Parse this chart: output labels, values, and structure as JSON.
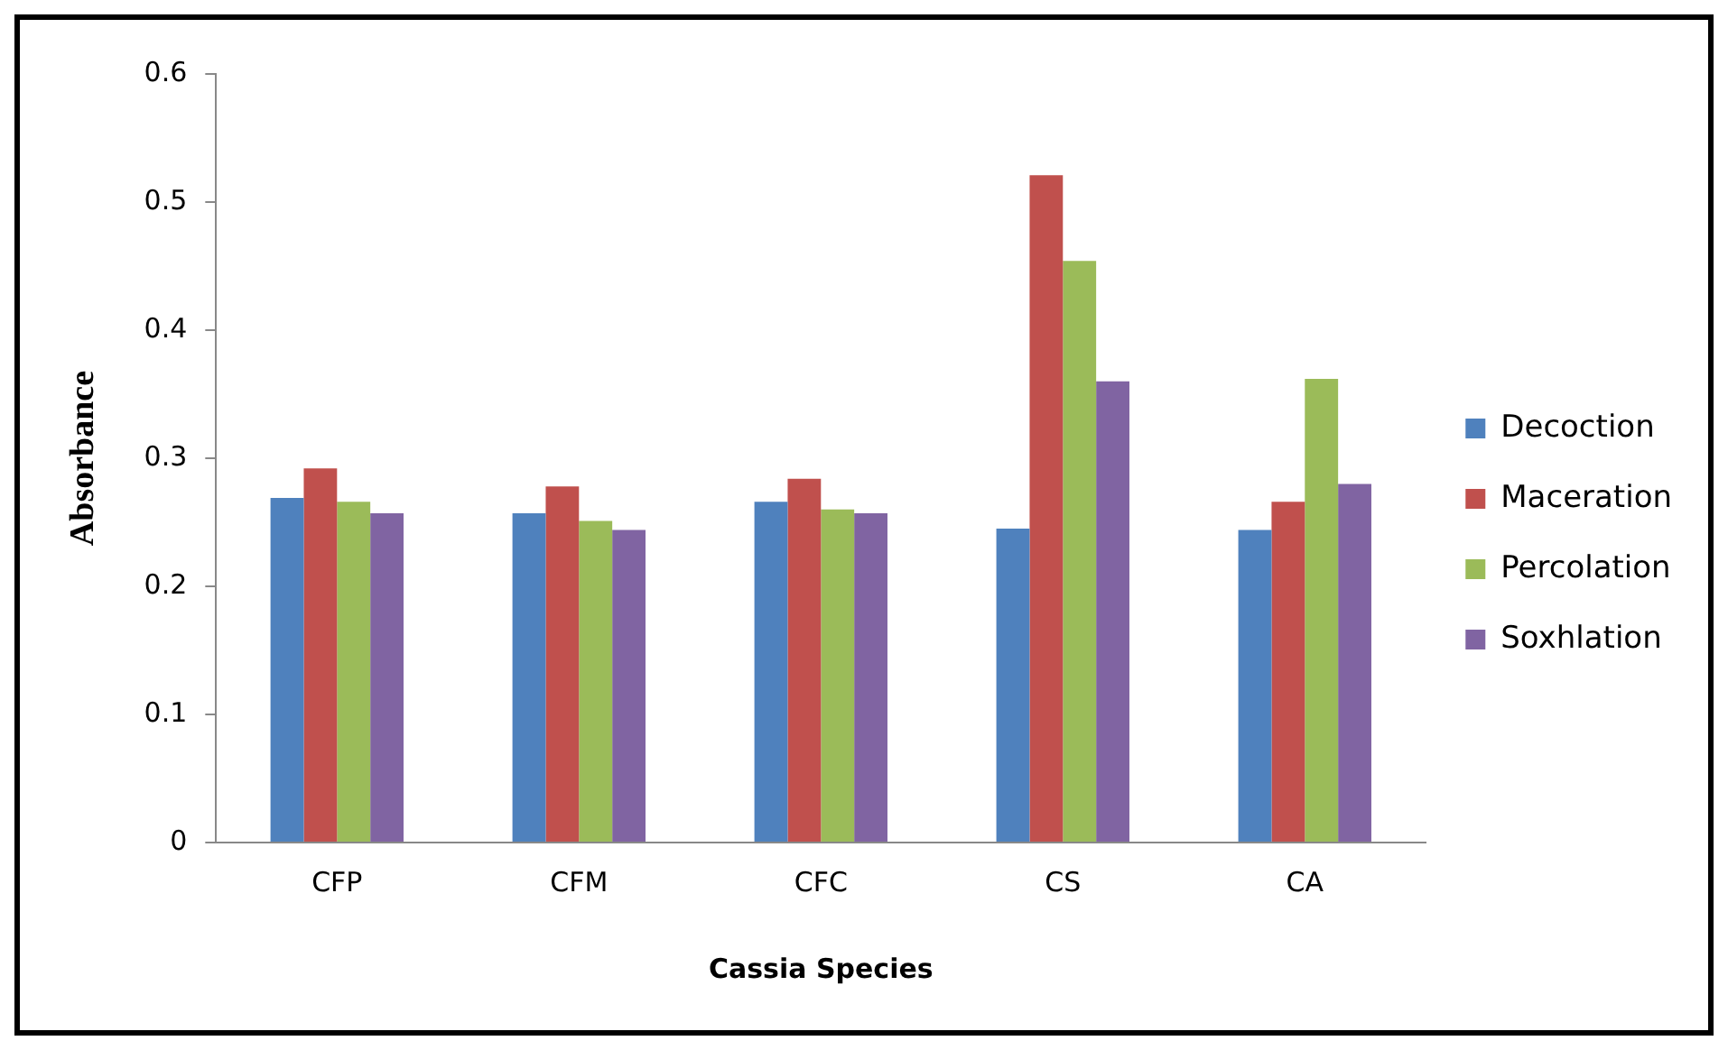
{
  "chart_data": {
    "type": "bar",
    "xlabel": "Cassia Species",
    "ylabel": "Absorbance",
    "categories": [
      "CFP",
      "CFM",
      "CFC",
      "CS",
      "CA"
    ],
    "series": [
      {
        "name": "Decoction",
        "color": "#4f81bd",
        "values": [
          0.269,
          0.257,
          0.266,
          0.245,
          0.244
        ]
      },
      {
        "name": "Maceration",
        "color": "#c0504d",
        "values": [
          0.292,
          0.278,
          0.284,
          0.521,
          0.266
        ]
      },
      {
        "name": "Percolation",
        "color": "#9bbb59",
        "values": [
          0.266,
          0.251,
          0.26,
          0.454,
          0.362
        ]
      },
      {
        "name": "Soxhlation",
        "color": "#8064a2",
        "values": [
          0.257,
          0.244,
          0.257,
          0.36,
          0.28
        ]
      }
    ],
    "ylim": [
      0,
      0.6
    ],
    "yticks": [
      0,
      0.1,
      0.2,
      0.3,
      0.4,
      0.5,
      0.6
    ],
    "grid": false,
    "legend": "right"
  }
}
